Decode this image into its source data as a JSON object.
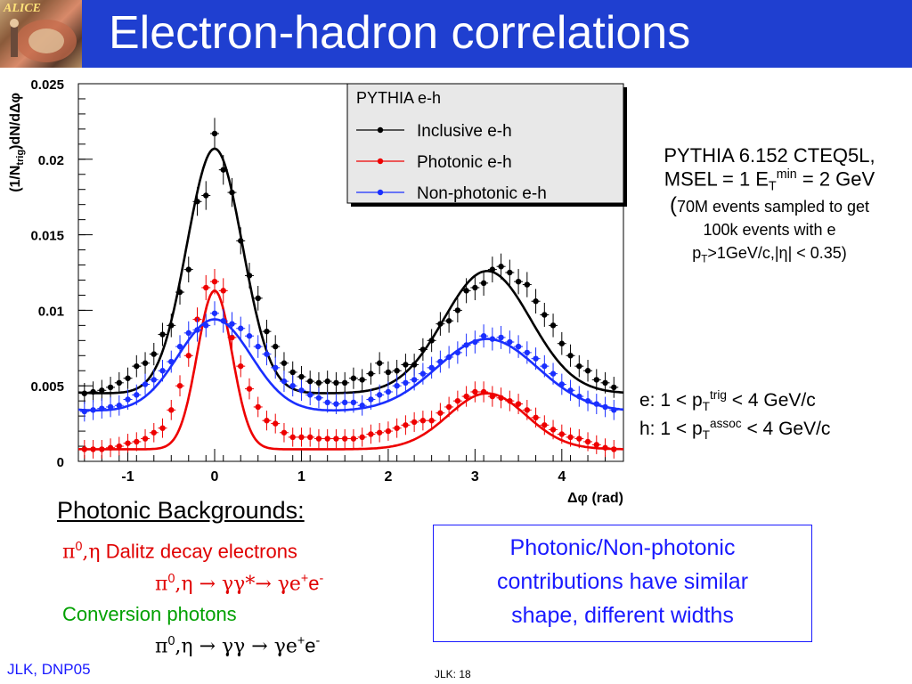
{
  "slide": {
    "title": "Electron-hadron correlations",
    "logo_text": "ALICE",
    "colors": {
      "title_bar": "#1f3fd0",
      "inclusive": "#000000",
      "photonic": "#ee0000",
      "nonphotonic": "#1a2fff",
      "callout_text": "#1a1aff"
    }
  },
  "pythia_info": {
    "line1": "PYTHIA 6.152 CTEQ5L,",
    "line2_a": "MSEL = 1 E",
    "line2_sub": "T",
    "line2_sup": "min",
    "line2_b": " = 2 GeV",
    "line3_paren": "(",
    "line3": "70M events sampled to get",
    "line4": "100k events with e",
    "line5_a": "p",
    "line5_sub": "T",
    "line5_b": ">1GeV/c,|η| < 0.35)"
  },
  "cuts": {
    "e_a": "e: 1 < p",
    "e_sub": "T",
    "e_sup": "trig",
    "e_b": " < 4 GeV/c",
    "h_a": "h: 1 < p",
    "h_sub": "T",
    "h_sup": "assoc",
    "h_b": " < 4 GeV/c"
  },
  "backgrounds": {
    "heading": "Photonic Backgrounds:",
    "dalitz_sym": "π",
    "dalitz_sup": "0",
    "dalitz_eta": ",η",
    "dalitz_text": " Dalitz decay electrons",
    "dalitz_eq_a": "π",
    "dalitz_eq_sup": "0",
    "dalitz_eq_b": ",η → γγ*→ γe",
    "dalitz_eq_sup2": "+",
    "dalitz_eq_c": "e",
    "dalitz_eq_sup3": "-",
    "conversion_text": "Conversion photons",
    "conv_eq_a": "π",
    "conv_eq_sup": "0",
    "conv_eq_b": ",η → γγ → γe",
    "conv_eq_sup2": "+",
    "conv_eq_c": "e",
    "conv_eq_sup3": "-"
  },
  "callout": {
    "line1": "Photonic/Non-photonic",
    "line2": "contributions have similar",
    "line3": "shape, different widths"
  },
  "footer": {
    "left": "JLK, DNP05",
    "page": "JLK: 18"
  },
  "chart_data": {
    "type": "scatter",
    "ylabel_a": "(1/N",
    "ylabel_sub": "trig",
    "ylabel_b": ")dN/dΔφ",
    "xlabel": "Δφ (rad)",
    "xlim": [
      -1.57,
      4.71
    ],
    "ylim": [
      0,
      0.025
    ],
    "xticks": [
      -1,
      0,
      1,
      2,
      3,
      4
    ],
    "yticks": [
      0,
      0.005,
      0.01,
      0.015,
      0.02,
      0.025
    ],
    "ytick_labels": [
      "0",
      "0.005",
      "0.01",
      "0.015",
      "0.02",
      "0.025"
    ],
    "legend": {
      "title": "PYTHIA e-h",
      "position": "top-right",
      "entries": [
        "Inclusive e-h",
        "Photonic e-h",
        "Non-photonic e-h"
      ]
    },
    "x": [
      -1.5,
      -1.4,
      -1.3,
      -1.2,
      -1.1,
      -1.0,
      -0.9,
      -0.8,
      -0.7,
      -0.6,
      -0.5,
      -0.4,
      -0.3,
      -0.2,
      -0.1,
      0.0,
      0.1,
      0.2,
      0.3,
      0.4,
      0.5,
      0.6,
      0.7,
      0.8,
      0.9,
      1.0,
      1.1,
      1.2,
      1.3,
      1.4,
      1.5,
      1.6,
      1.7,
      1.8,
      1.9,
      2.0,
      2.1,
      2.2,
      2.3,
      2.4,
      2.5,
      2.6,
      2.7,
      2.8,
      2.9,
      3.0,
      3.1,
      3.2,
      3.3,
      3.4,
      3.5,
      3.6,
      3.7,
      3.8,
      3.9,
      4.0,
      4.1,
      4.2,
      4.3,
      4.4,
      4.5,
      4.6
    ],
    "series": [
      {
        "name": "Inclusive e-h",
        "color": "#000000",
        "points": [
          0.0045,
          0.0046,
          0.0047,
          0.0049,
          0.0052,
          0.0055,
          0.0063,
          0.0065,
          0.0071,
          0.0084,
          0.009,
          0.0112,
          0.0127,
          0.0172,
          0.0176,
          0.0217,
          0.0193,
          0.0178,
          0.0146,
          0.0123,
          0.0108,
          0.0086,
          0.0076,
          0.0065,
          0.0059,
          0.0056,
          0.0053,
          0.0052,
          0.0053,
          0.0052,
          0.0052,
          0.0055,
          0.0054,
          0.0058,
          0.0065,
          0.0059,
          0.006,
          0.0064,
          0.0064,
          0.0074,
          0.008,
          0.0091,
          0.0093,
          0.01,
          0.0113,
          0.0115,
          0.0118,
          0.0127,
          0.0129,
          0.0125,
          0.0119,
          0.0117,
          0.0106,
          0.0097,
          0.009,
          0.0078,
          0.007,
          0.0063,
          0.006,
          0.0054,
          0.0052,
          0.0049
        ],
        "fit": {
          "base": 0.0045,
          "amp_near": 0.0162,
          "sigma_near": 0.32,
          "amp_away": 0.0081,
          "sigma_away": 0.5,
          "away_center": 3.14
        }
      },
      {
        "name": "Photonic e-h",
        "color": "#ee0000",
        "points": [
          0.0008,
          0.0008,
          0.0008,
          0.0009,
          0.001,
          0.0012,
          0.0013,
          0.0015,
          0.0019,
          0.0022,
          0.0034,
          0.005,
          0.007,
          0.0094,
          0.0115,
          0.0119,
          0.0113,
          0.0082,
          0.0063,
          0.0048,
          0.0036,
          0.0027,
          0.0025,
          0.0019,
          0.0016,
          0.0016,
          0.0016,
          0.0015,
          0.0015,
          0.0015,
          0.0015,
          0.0015,
          0.0016,
          0.0018,
          0.0019,
          0.002,
          0.0022,
          0.0024,
          0.0026,
          0.0027,
          0.0027,
          0.0032,
          0.0036,
          0.004,
          0.0043,
          0.0046,
          0.0046,
          0.0043,
          0.0042,
          0.004,
          0.0038,
          0.0034,
          0.0029,
          0.0024,
          0.0021,
          0.0018,
          0.0016,
          0.0015,
          0.0013,
          0.0011,
          0.0009,
          0.0008
        ],
        "fit": {
          "base": 0.0008,
          "amp_near": 0.0105,
          "sigma_near": 0.2,
          "amp_away": 0.0037,
          "sigma_away": 0.45,
          "away_center": 3.14
        }
      },
      {
        "name": "Non-photonic e-h",
        "color": "#1a2fff",
        "points": [
          0.0033,
          0.0034,
          0.0035,
          0.0036,
          0.0037,
          0.0041,
          0.0044,
          0.0051,
          0.0054,
          0.006,
          0.0066,
          0.0076,
          0.0085,
          0.0087,
          0.009,
          0.0098,
          0.0093,
          0.0091,
          0.0088,
          0.0083,
          0.0076,
          0.0071,
          0.0062,
          0.0053,
          0.005,
          0.0047,
          0.0044,
          0.0042,
          0.0039,
          0.0038,
          0.0039,
          0.0039,
          0.0037,
          0.0041,
          0.0044,
          0.0046,
          0.005,
          0.0052,
          0.0054,
          0.0058,
          0.0062,
          0.0066,
          0.0069,
          0.0072,
          0.0077,
          0.0079,
          0.0083,
          0.0081,
          0.0082,
          0.0079,
          0.0076,
          0.0072,
          0.0068,
          0.0063,
          0.0058,
          0.0051,
          0.0047,
          0.0043,
          0.004,
          0.0038,
          0.0036,
          0.0034
        ],
        "fit": {
          "base": 0.0033,
          "amp_near": 0.0061,
          "sigma_near": 0.42,
          "amp_away": 0.0048,
          "sigma_away": 0.58,
          "away_center": 3.14
        }
      }
    ]
  }
}
